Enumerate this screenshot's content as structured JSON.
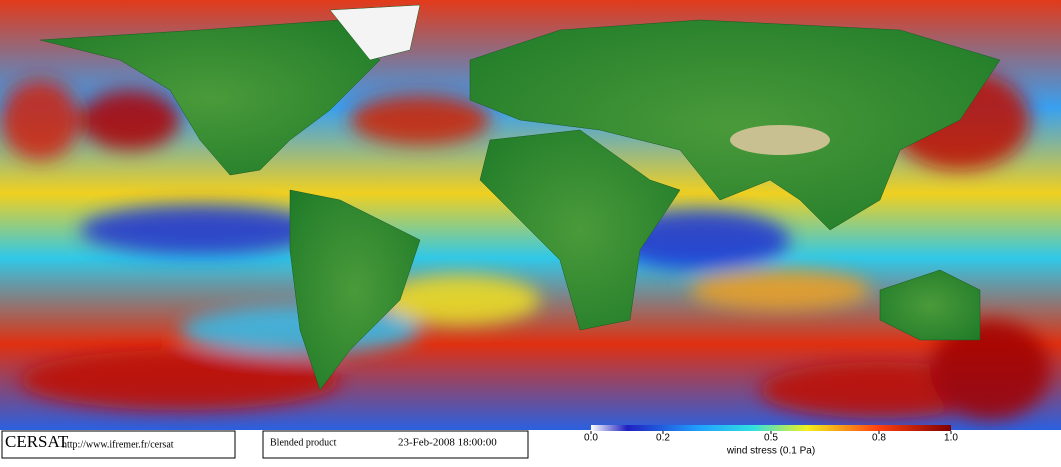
{
  "footer": {
    "logo": "CERSAT",
    "url": "http://www.ifremer.fr/cersat",
    "product": "Blended product",
    "timestamp": "23-Feb-2008 18:00:00"
  },
  "colorbar": {
    "label": "wind stress (0.1 Pa)",
    "lim": [
      0,
      1
    ],
    "ticks": [
      {
        "value": 0,
        "label": "0.0"
      },
      0.2,
      0.5,
      0.8,
      {
        "value": 1,
        "label": "1.0"
      }
    ]
  }
}
